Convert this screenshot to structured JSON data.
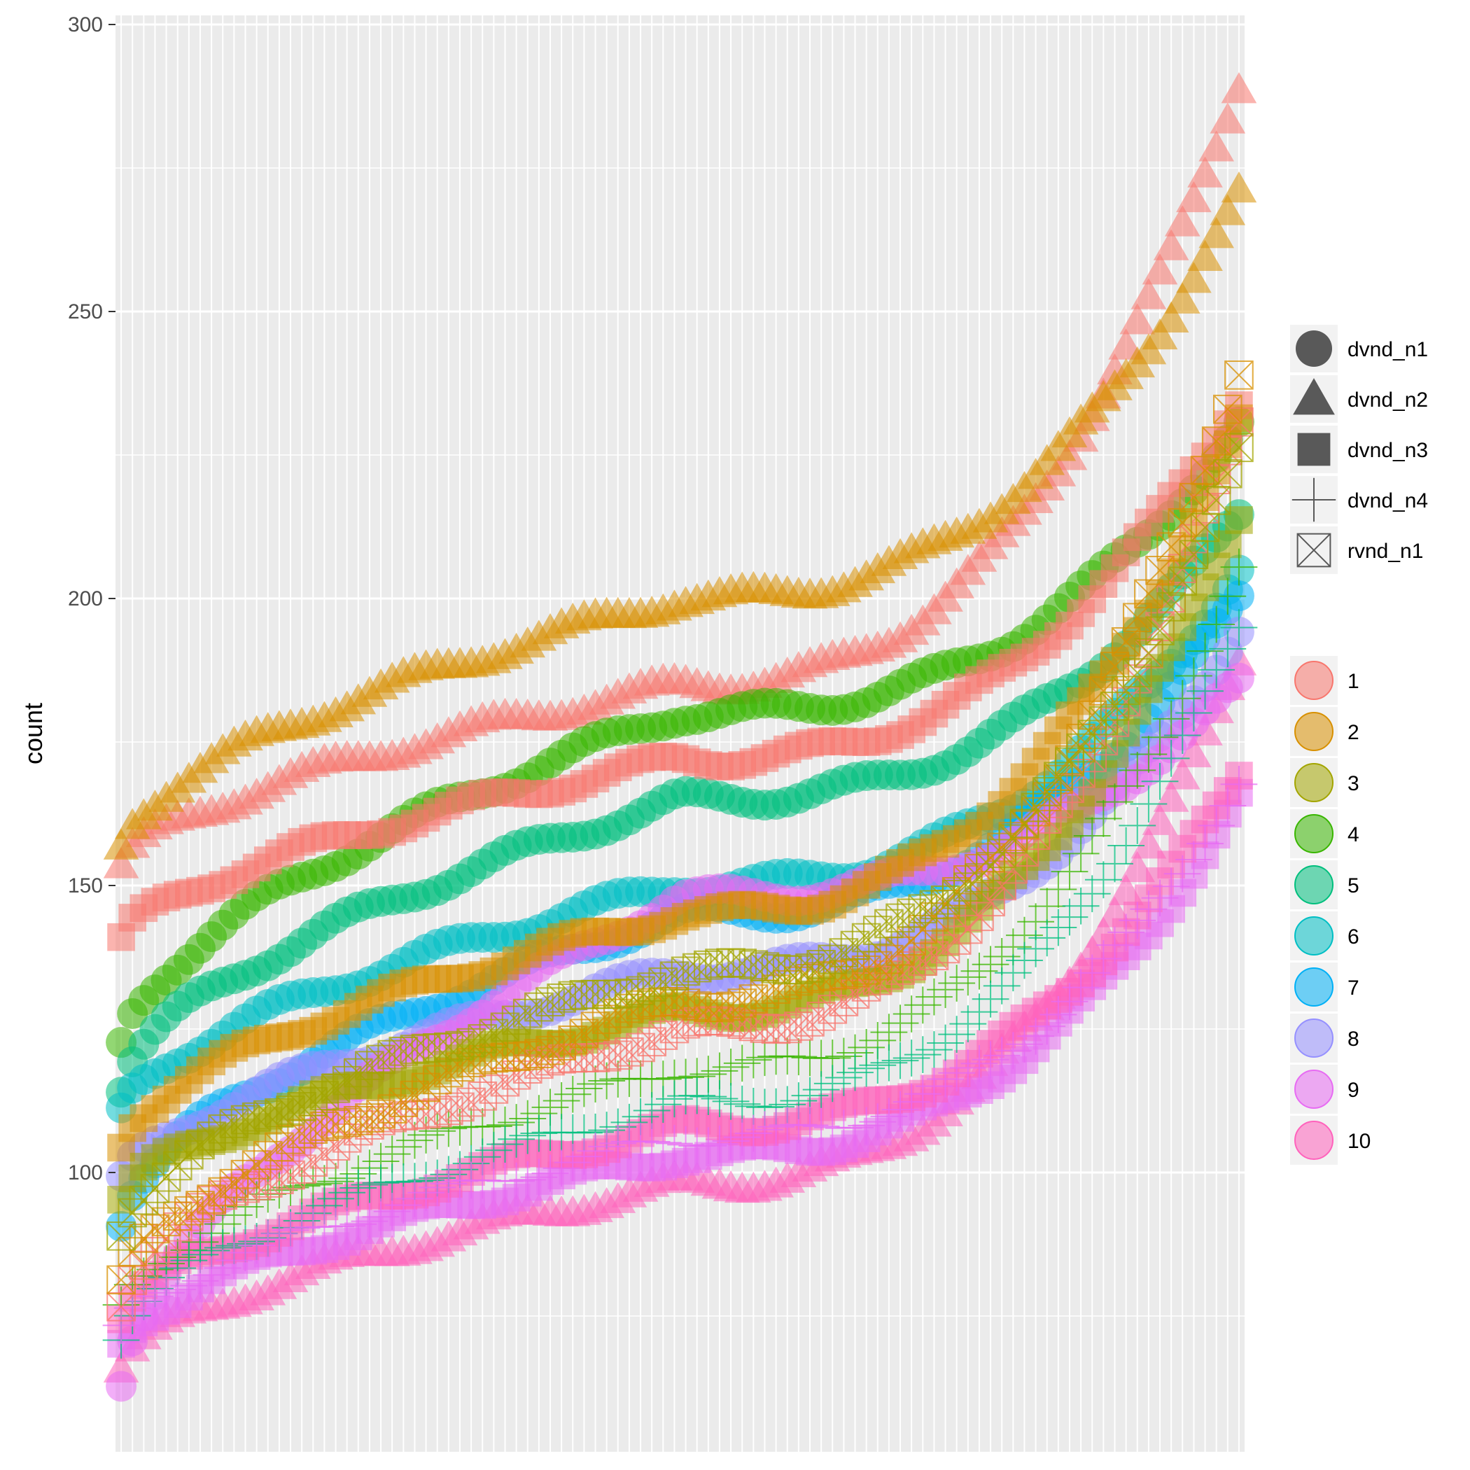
{
  "chart_data": {
    "type": "scatter",
    "title": "",
    "xlabel": "",
    "ylabel": "count",
    "ylim": [
      60,
      300
    ],
    "y_ticks": [
      100,
      150,
      200,
      250,
      300
    ],
    "x_count": 100,
    "grid": true,
    "legend_position": "right",
    "shape_legend": [
      {
        "label": "dvnd_n1",
        "shape": "circle"
      },
      {
        "label": "dvnd_n2",
        "shape": "triangle"
      },
      {
        "label": "dvnd_n3",
        "shape": "square"
      },
      {
        "label": "dvnd_n4",
        "shape": "plus"
      },
      {
        "label": "rvnd_n1",
        "shape": "boxcross"
      }
    ],
    "color_legend": [
      {
        "label": "1",
        "color": "#F8766D"
      },
      {
        "label": "2",
        "color": "#D89000"
      },
      {
        "label": "3",
        "color": "#A3A500"
      },
      {
        "label": "4",
        "color": "#39B600"
      },
      {
        "label": "5",
        "color": "#00BF7D"
      },
      {
        "label": "6",
        "color": "#00BFC4"
      },
      {
        "label": "7",
        "color": "#00B0F6"
      },
      {
        "label": "8",
        "color": "#9590FF"
      },
      {
        "label": "9",
        "color": "#E76BF3"
      },
      {
        "label": "10",
        "color": "#FF62BC"
      }
    ],
    "series": [
      {
        "shape": "triangle",
        "color": "1",
        "start": 153,
        "mid": 185,
        "end": 290
      },
      {
        "shape": "triangle",
        "color": "2",
        "start": 157,
        "mid": 200,
        "end": 270
      },
      {
        "shape": "triangle",
        "color": "10",
        "start": 66,
        "mid": 98,
        "end": 190
      },
      {
        "shape": "circle",
        "color": "4",
        "start": 122,
        "mid": 180,
        "end": 230
      },
      {
        "shape": "circle",
        "color": "5",
        "start": 115,
        "mid": 165,
        "end": 215
      },
      {
        "shape": "circle",
        "color": "6",
        "start": 110,
        "mid": 150,
        "end": 205
      },
      {
        "shape": "circle",
        "color": "7",
        "start": 92,
        "mid": 145,
        "end": 200
      },
      {
        "shape": "circle",
        "color": "8",
        "start": 98,
        "mid": 135,
        "end": 195
      },
      {
        "shape": "circle",
        "color": "9",
        "start": 64,
        "mid": 148,
        "end": 185
      },
      {
        "shape": "square",
        "color": "1",
        "start": 140,
        "mid": 172,
        "end": 235
      },
      {
        "shape": "square",
        "color": "2",
        "start": 105,
        "mid": 145,
        "end": 230
      },
      {
        "shape": "square",
        "color": "3",
        "start": 95,
        "mid": 128,
        "end": 215
      },
      {
        "shape": "square",
        "color": "9",
        "start": 70,
        "mid": 103,
        "end": 165
      },
      {
        "shape": "square",
        "color": "10",
        "start": 75,
        "mid": 108,
        "end": 170
      },
      {
        "shape": "plus",
        "color": "4",
        "start": 76,
        "mid": 118,
        "end": 205
      },
      {
        "shape": "plus",
        "color": "5",
        "start": 72,
        "mid": 112,
        "end": 195
      },
      {
        "shape": "plus",
        "color": "9",
        "start": 72,
        "mid": 106,
        "end": 168
      },
      {
        "shape": "boxcross",
        "color": "1",
        "start": 78,
        "mid": 125,
        "end": 230
      },
      {
        "shape": "boxcross",
        "color": "2",
        "start": 80,
        "mid": 130,
        "end": 240
      },
      {
        "shape": "boxcross",
        "color": "3",
        "start": 90,
        "mid": 135,
        "end": 225
      }
    ]
  }
}
